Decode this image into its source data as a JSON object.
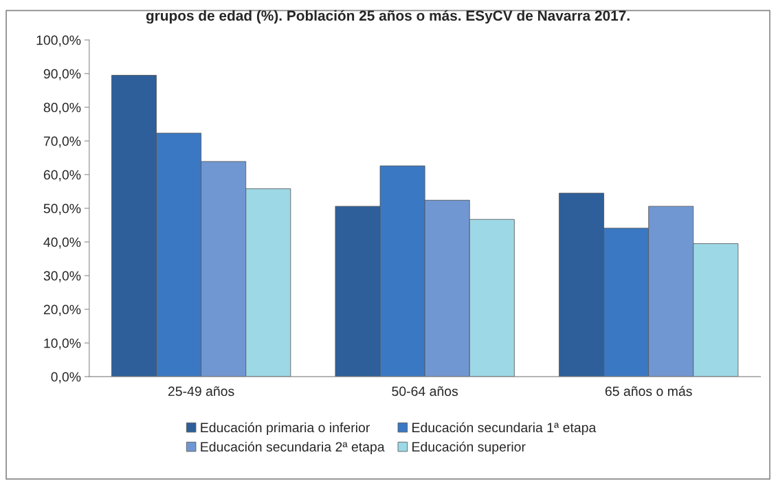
{
  "chart_data": {
    "type": "bar",
    "title": "grupos de edad (%). Población 25 años o más. ESyCV de Navarra 2017.",
    "categories": [
      "25-49 años",
      "50-64 años",
      "65 años o más"
    ],
    "series": [
      {
        "name": "Educación primaria o inferior",
        "color": "#2e5f9a",
        "values": [
          89.5,
          50.6,
          54.5
        ]
      },
      {
        "name": "Educación secundaria 1ª etapa",
        "color": "#3a78c3",
        "values": [
          72.3,
          62.6,
          44.1
        ]
      },
      {
        "name": "Educación secundaria 2ª etapa",
        "color": "#7097d2",
        "values": [
          63.9,
          52.4,
          50.6
        ]
      },
      {
        "name": "Educación superior",
        "color": "#9dd8e6",
        "values": [
          55.8,
          46.7,
          39.5
        ]
      }
    ],
    "ylim": [
      0,
      100
    ],
    "yticks": [
      {
        "value": 0,
        "label": "0,0%"
      },
      {
        "value": 10,
        "label": "10,0%"
      },
      {
        "value": 20,
        "label": "20,0%"
      },
      {
        "value": 30,
        "label": "30,0%"
      },
      {
        "value": 40,
        "label": "40,0%"
      },
      {
        "value": 50,
        "label": "50,0%"
      },
      {
        "value": 60,
        "label": "60,0%"
      },
      {
        "value": 70,
        "label": "70,0%"
      },
      {
        "value": 80,
        "label": "80,0%"
      },
      {
        "value": 90,
        "label": "90,0%"
      },
      {
        "value": 100,
        "label": "100,0%"
      }
    ],
    "legend": "bottom"
  }
}
